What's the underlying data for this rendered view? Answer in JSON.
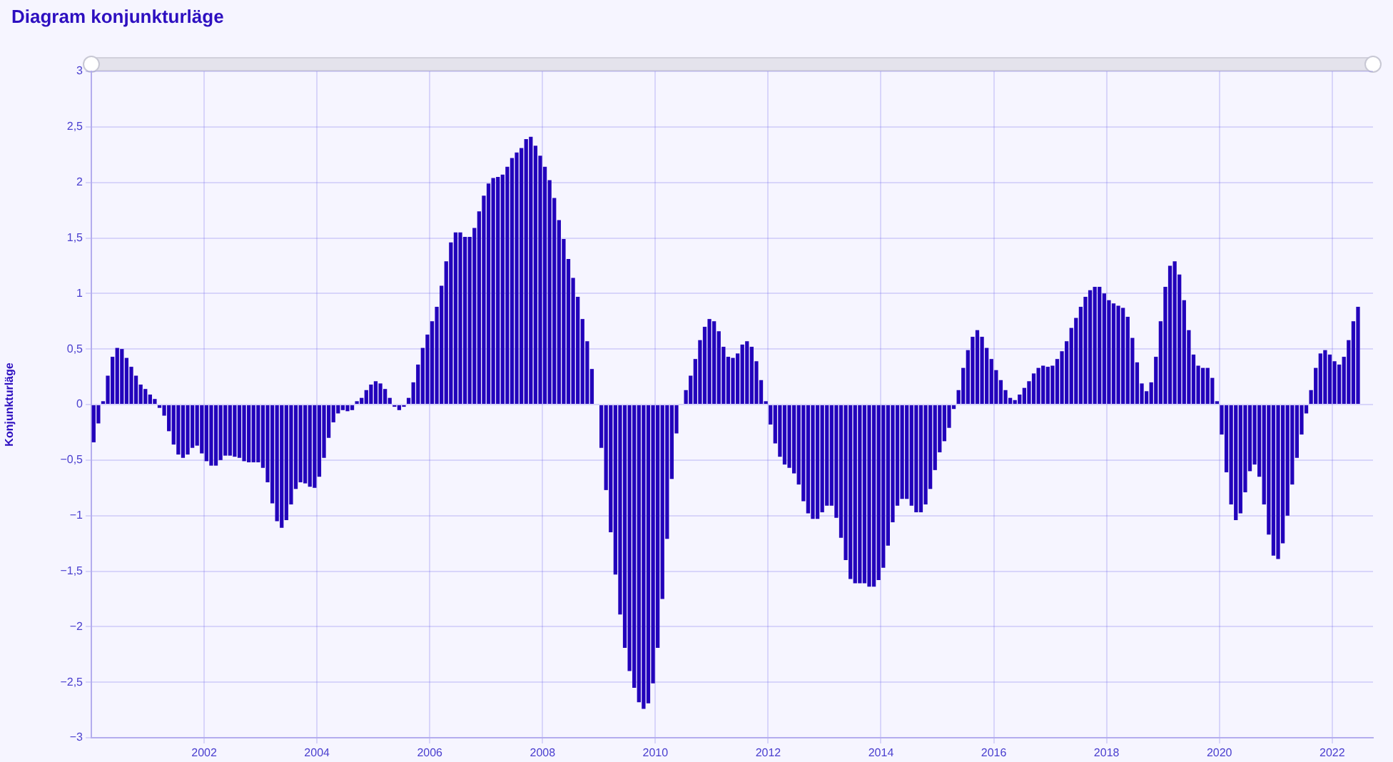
{
  "chart_data": {
    "type": "bar",
    "title": "Diagram konjunkturläge",
    "ylabel": "Konjunkturläge",
    "color": "#2200bb",
    "grid": true,
    "xlim": [
      "2000-01-01",
      "2022-09-22"
    ],
    "xticks": [
      {
        "value": "2002",
        "label": "2002"
      },
      {
        "value": "2004",
        "label": "2004"
      },
      {
        "value": "2006",
        "label": "2006"
      },
      {
        "value": "2008",
        "label": "2008"
      },
      {
        "value": "2010",
        "label": "2010"
      },
      {
        "value": "2012",
        "label": "2012"
      },
      {
        "value": "2014",
        "label": "2014"
      },
      {
        "value": "2016",
        "label": "2016"
      },
      {
        "value": "2018",
        "label": "2018"
      },
      {
        "value": "2020",
        "label": "2020"
      },
      {
        "value": "2022",
        "label": "2022"
      }
    ],
    "ylim": [
      -3,
      3
    ],
    "yticks": [
      {
        "value": -3,
        "label": "−3"
      },
      {
        "value": -2.5,
        "label": "−2,5"
      },
      {
        "value": -2,
        "label": "−2"
      },
      {
        "value": -1.5,
        "label": "−1,5"
      },
      {
        "value": -1,
        "label": "−1"
      },
      {
        "value": -0.5,
        "label": "−0,5"
      },
      0,
      {
        "value": 0.5,
        "label": "0,5"
      },
      1,
      {
        "value": 1.5,
        "label": "1,5"
      },
      2,
      {
        "value": 2.5,
        "label": "2,5"
      },
      3
    ],
    "x": [
      "2000-01",
      "2000-02",
      "2000-03",
      "2000-04",
      "2000-05",
      "2000-06",
      "2000-07",
      "2000-08",
      "2000-09",
      "2000-10",
      "2000-11",
      "2000-12",
      "2001-01",
      "2001-02",
      "2001-03",
      "2001-04",
      "2001-05",
      "2001-06",
      "2001-07",
      "2001-08",
      "2001-09",
      "2001-10",
      "2001-11",
      "2001-12",
      "2002-01",
      "2002-02",
      "2002-03",
      "2002-04",
      "2002-05",
      "2002-06",
      "2002-07",
      "2002-08",
      "2002-09",
      "2002-10",
      "2002-11",
      "2002-12",
      "2003-01",
      "2003-02",
      "2003-03",
      "2003-04",
      "2003-05",
      "2003-06",
      "2003-07",
      "2003-08",
      "2003-09",
      "2003-10",
      "2003-11",
      "2003-12",
      "2004-01",
      "2004-02",
      "2004-03",
      "2004-04",
      "2004-05",
      "2004-06",
      "2004-07",
      "2004-08",
      "2004-09",
      "2004-10",
      "2004-11",
      "2004-12",
      "2005-01",
      "2005-02",
      "2005-03",
      "2005-04",
      "2005-05",
      "2005-06",
      "2005-07",
      "2005-08",
      "2005-09",
      "2005-10",
      "2005-11",
      "2005-12",
      "2006-01",
      "2006-02",
      "2006-03",
      "2006-04",
      "2006-05",
      "2006-06",
      "2006-07",
      "2006-08",
      "2006-09",
      "2006-10",
      "2006-11",
      "2006-12",
      "2007-01",
      "2007-02",
      "2007-03",
      "2007-04",
      "2007-05",
      "2007-06",
      "2007-07",
      "2007-08",
      "2007-09",
      "2007-10",
      "2007-11",
      "2007-12",
      "2008-01",
      "2008-02",
      "2008-03",
      "2008-04",
      "2008-05",
      "2008-06",
      "2008-07",
      "2008-08",
      "2008-09",
      "2008-10",
      "2008-11",
      "2008-12",
      "2009-01",
      "2009-02",
      "2009-03",
      "2009-04",
      "2009-05",
      "2009-06",
      "2009-07",
      "2009-08",
      "2009-09",
      "2009-10",
      "2009-11",
      "2009-12",
      "2010-01",
      "2010-02",
      "2010-03",
      "2010-04",
      "2010-05",
      "2010-06",
      "2010-07",
      "2010-08",
      "2010-09",
      "2010-10",
      "2010-11",
      "2010-12",
      "2011-01",
      "2011-02",
      "2011-03",
      "2011-04",
      "2011-05",
      "2011-06",
      "2011-07",
      "2011-08",
      "2011-09",
      "2011-10",
      "2011-11",
      "2011-12",
      "2012-01",
      "2012-02",
      "2012-03",
      "2012-04",
      "2012-05",
      "2012-06",
      "2012-07",
      "2012-08",
      "2012-09",
      "2012-10",
      "2012-11",
      "2012-12",
      "2013-01",
      "2013-02",
      "2013-03",
      "2013-04",
      "2013-05",
      "2013-06",
      "2013-07",
      "2013-08",
      "2013-09",
      "2013-10",
      "2013-11",
      "2013-12",
      "2014-01",
      "2014-02",
      "2014-03",
      "2014-04",
      "2014-05",
      "2014-06",
      "2014-07",
      "2014-08",
      "2014-09",
      "2014-10",
      "2014-11",
      "2014-12",
      "2015-01",
      "2015-02",
      "2015-03",
      "2015-04",
      "2015-05",
      "2015-06",
      "2015-07",
      "2015-08",
      "2015-09",
      "2015-10",
      "2015-11",
      "2015-12",
      "2016-01",
      "2016-02",
      "2016-03",
      "2016-04",
      "2016-05",
      "2016-06",
      "2016-07",
      "2016-08",
      "2016-09",
      "2016-10",
      "2016-11",
      "2016-12",
      "2017-01",
      "2017-02",
      "2017-03",
      "2017-04",
      "2017-05",
      "2017-06",
      "2017-07",
      "2017-08",
      "2017-09",
      "2017-10",
      "2017-11",
      "2017-12",
      "2018-01",
      "2018-02",
      "2018-03",
      "2018-04",
      "2018-05",
      "2018-06",
      "2018-07",
      "2018-08",
      "2018-09",
      "2018-10",
      "2018-11",
      "2018-12",
      "2019-01",
      "2019-02",
      "2019-03",
      "2019-04",
      "2019-05",
      "2019-06",
      "2019-07",
      "2019-08",
      "2019-09",
      "2019-10",
      "2019-11",
      "2019-12",
      "2020-01",
      "2020-02",
      "2020-03",
      "2020-04",
      "2020-05",
      "2020-06",
      "2020-07",
      "2020-08",
      "2020-09",
      "2020-10",
      "2020-11",
      "2020-12",
      "2021-01",
      "2021-02",
      "2021-03",
      "2021-04",
      "2021-05",
      "2021-06",
      "2021-07",
      "2021-08",
      "2021-09",
      "2021-10",
      "2021-11",
      "2021-12",
      "2022-01",
      "2022-02",
      "2022-03",
      "2022-04",
      "2022-05",
      "2022-06"
    ],
    "values": [
      -0.34,
      -0.17,
      0.03,
      0.26,
      0.43,
      0.51,
      0.5,
      0.42,
      0.34,
      0.26,
      0.18,
      0.14,
      0.09,
      0.05,
      -0.03,
      -0.1,
      -0.24,
      -0.36,
      -0.45,
      -0.48,
      -0.45,
      -0.39,
      -0.37,
      -0.44,
      -0.51,
      -0.55,
      -0.55,
      -0.5,
      -0.46,
      -0.46,
      -0.47,
      -0.48,
      -0.51,
      -0.52,
      -0.52,
      -0.52,
      -0.57,
      -0.7,
      -0.89,
      -1.05,
      -1.11,
      -1.04,
      -0.9,
      -0.76,
      -0.7,
      -0.71,
      -0.74,
      -0.75,
      -0.65,
      -0.48,
      -0.3,
      -0.16,
      -0.08,
      -0.05,
      -0.06,
      -0.05,
      0.03,
      0.06,
      0.13,
      0.18,
      0.21,
      0.19,
      0.14,
      0.06,
      -0.02,
      -0.05,
      -0.02,
      0.06,
      0.2,
      0.36,
      0.51,
      0.63,
      0.75,
      0.88,
      1.07,
      1.29,
      1.46,
      1.55,
      1.55,
      1.51,
      1.51,
      1.59,
      1.74,
      1.88,
      1.99,
      2.04,
      2.05,
      2.07,
      2.14,
      2.22,
      2.27,
      2.31,
      2.39,
      2.41,
      2.33,
      2.24,
      2.14,
      2.02,
      1.86,
      1.66,
      1.49,
      1.31,
      1.14,
      0.97,
      0.77,
      0.57,
      0.32,
      0,
      -0.39,
      -0.77,
      -1.15,
      -1.53,
      -1.89,
      -2.19,
      -2.4,
      -2.55,
      -2.68,
      -2.74,
      -2.69,
      -2.51,
      -2.19,
      -1.75,
      -1.21,
      -0.67,
      -0.26,
      0,
      0.13,
      0.26,
      0.41,
      0.58,
      0.7,
      0.77,
      0.75,
      0.66,
      0.52,
      0.43,
      0.42,
      0.46,
      0.54,
      0.57,
      0.52,
      0.39,
      0.22,
      0.03,
      -0.18,
      -0.35,
      -0.47,
      -0.54,
      -0.57,
      -0.62,
      -0.72,
      -0.87,
      -0.98,
      -1.03,
      -1.03,
      -0.97,
      -0.91,
      -0.91,
      -1.02,
      -1.2,
      -1.4,
      -1.57,
      -1.61,
      -1.61,
      -1.61,
      -1.64,
      -1.64,
      -1.58,
      -1.47,
      -1.27,
      -1.06,
      -0.91,
      -0.85,
      -0.85,
      -0.91,
      -0.97,
      -0.97,
      -0.9,
      -0.76,
      -0.59,
      -0.43,
      -0.33,
      -0.21,
      -0.04,
      0.13,
      0.33,
      0.49,
      0.61,
      0.67,
      0.61,
      0.51,
      0.41,
      0.31,
      0.22,
      0.13,
      0.06,
      0.04,
      0.09,
      0.15,
      0.21,
      0.28,
      0.33,
      0.35,
      0.34,
      0.35,
      0.41,
      0.48,
      0.57,
      0.69,
      0.78,
      0.88,
      0.97,
      1.03,
      1.06,
      1.06,
      1.0,
      0.94,
      0.91,
      0.89,
      0.87,
      0.79,
      0.6,
      0.38,
      0.19,
      0.12,
      0.2,
      0.43,
      0.75,
      1.06,
      1.25,
      1.29,
      1.17,
      0.94,
      0.67,
      0.45,
      0.35,
      0.33,
      0.33,
      0.24,
      0.03,
      -0.27,
      -0.61,
      -0.9,
      -1.04,
      -0.98,
      -0.79,
      -0.6,
      -0.54,
      -0.65,
      -0.9,
      -1.17,
      -1.36,
      -1.39,
      -1.25,
      -1.0,
      -0.72,
      -0.48,
      -0.27,
      -0.08,
      0.13,
      0.33,
      0.46,
      0.49,
      0.45,
      0.39,
      0.36,
      0.43,
      0.58,
      0.75,
      0.88
    ]
  }
}
